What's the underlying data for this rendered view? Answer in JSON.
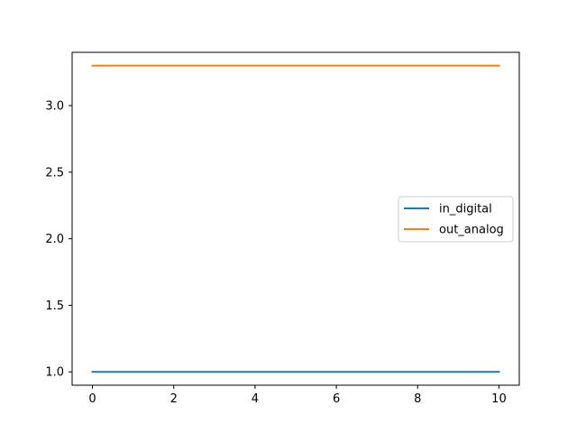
{
  "chart_data": {
    "type": "line",
    "title": "",
    "xlabel": "",
    "ylabel": "",
    "xlim": [
      -0.5,
      10.5
    ],
    "ylim": [
      0.9,
      3.4
    ],
    "x_ticks": [
      0,
      2,
      4,
      6,
      8,
      10
    ],
    "y_ticks": [
      1.0,
      1.5,
      2.0,
      2.5,
      3.0
    ],
    "x_tick_labels": [
      "0",
      "2",
      "4",
      "6",
      "8",
      "10"
    ],
    "y_tick_labels": [
      "1.0",
      "1.5",
      "2.0",
      "2.5",
      "3.0"
    ],
    "grid": false,
    "legend_position": "center-right",
    "series": [
      {
        "name": "in_digital",
        "color": "#1f77b4",
        "x": [
          0,
          10
        ],
        "y": [
          1.0,
          1.0
        ]
      },
      {
        "name": "out_analog",
        "color": "#ff7f0e",
        "x": [
          0,
          10
        ],
        "y": [
          3.3,
          3.3
        ]
      }
    ]
  }
}
